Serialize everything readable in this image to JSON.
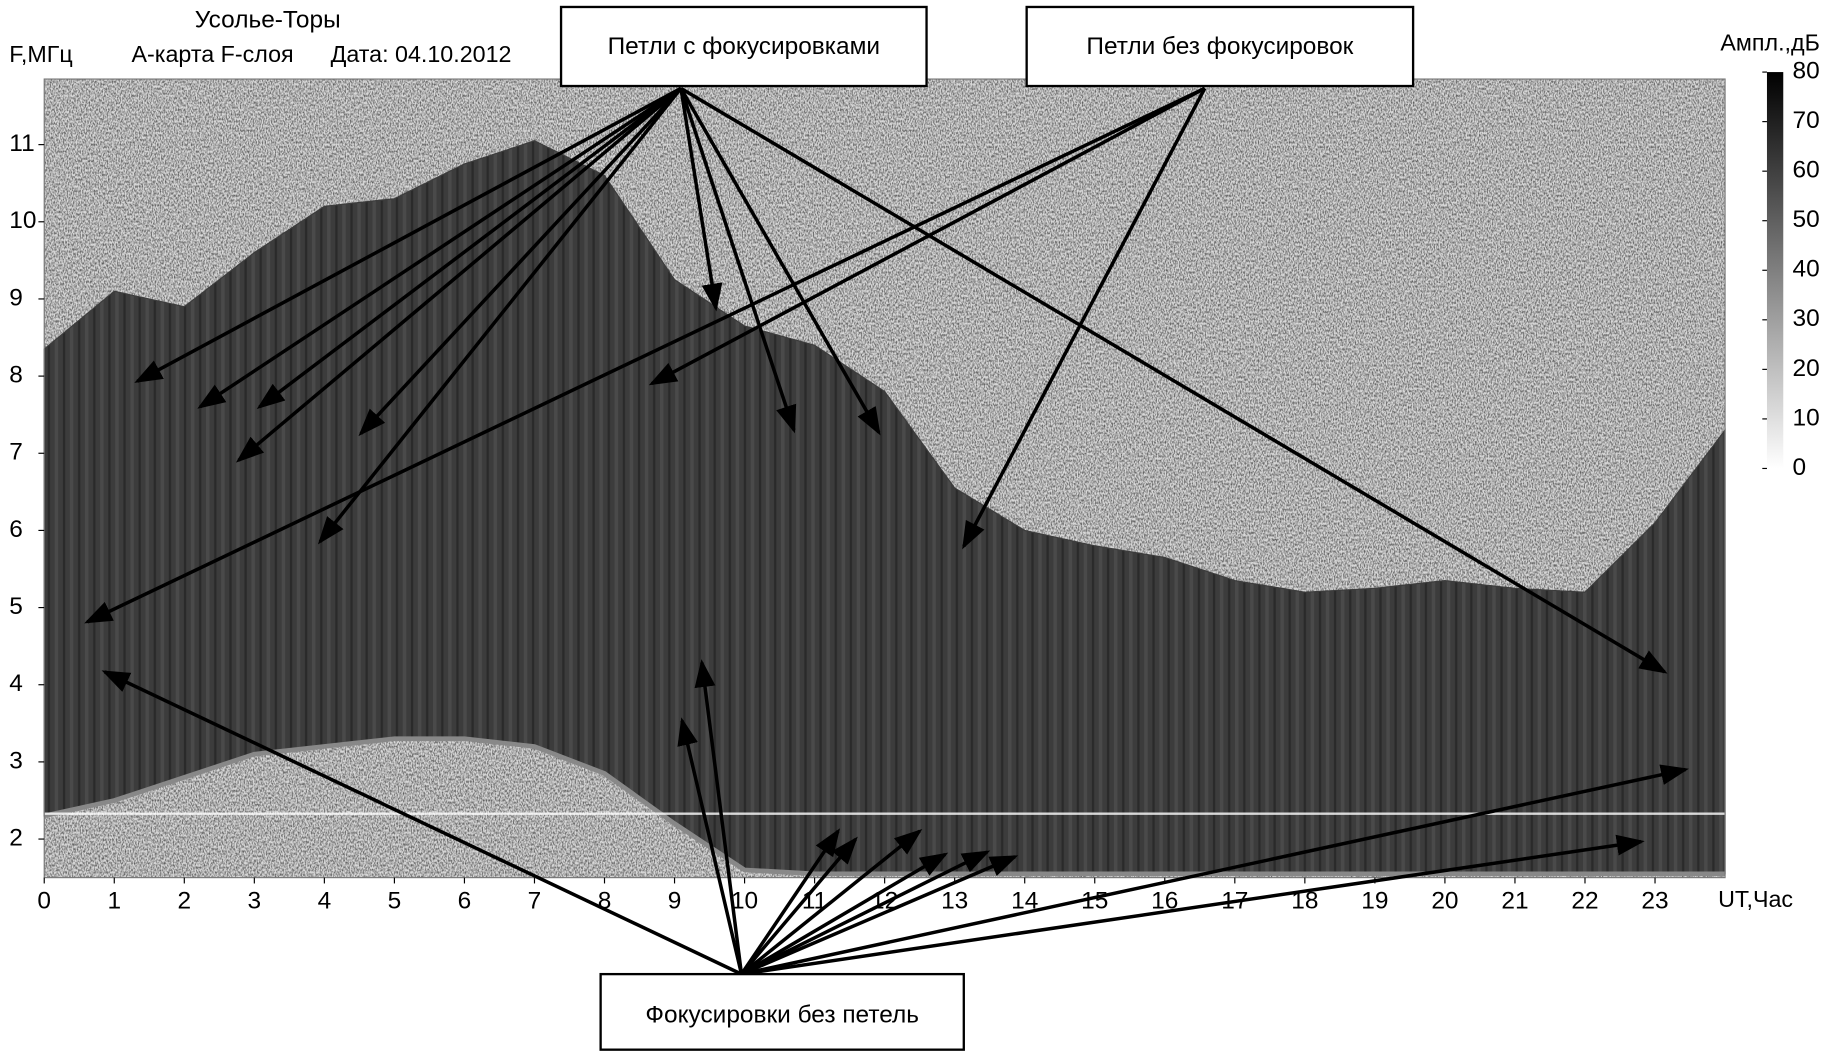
{
  "chart_data": {
    "type": "area",
    "title": "Усолье-Торы",
    "subtitle": "А-карта F-слоя",
    "date_label": "Дата: 04.10.2012",
    "xlabel": "UT,Час",
    "ylabel": "F,МГц",
    "x": [
      0,
      1,
      2,
      3,
      4,
      5,
      6,
      7,
      8,
      9,
      10,
      11,
      12,
      13,
      14,
      15,
      16,
      17,
      18,
      19,
      20,
      21,
      22,
      23,
      24
    ],
    "values": [
      8.35,
      9.1,
      8.9,
      9.6,
      10.2,
      10.3,
      10.75,
      11.05,
      10.6,
      9.25,
      8.65,
      8.4,
      7.8,
      6.55,
      6.0,
      5.8,
      5.65,
      5.35,
      5.2,
      5.25,
      5.35,
      5.25,
      5.2,
      6.1,
      7.3
    ],
    "lower": [
      2.3,
      2.5,
      2.8,
      3.1,
      3.2,
      3.3,
      3.3,
      3.2,
      2.85,
      2.2,
      1.6,
      1.55,
      1.55,
      1.55,
      1.55,
      1.55,
      1.55,
      1.55,
      1.55,
      1.55,
      1.55,
      1.55,
      1.55,
      1.55,
      1.55
    ],
    "color": "#3c3c3c",
    "xlim": [
      0,
      24
    ],
    "xticks": [
      0,
      1,
      2,
      3,
      4,
      5,
      6,
      7,
      8,
      9,
      10,
      11,
      12,
      13,
      14,
      15,
      16,
      17,
      18,
      19,
      20,
      21,
      22,
      23
    ],
    "ylim": [
      1.5,
      11.85
    ],
    "yticks": [
      2,
      3,
      4,
      5,
      6,
      7,
      8,
      9,
      10,
      11
    ],
    "colorbar_label": "Ампл.,дБ",
    "clim": [
      0,
      80
    ],
    "cticks": [
      0,
      10,
      20,
      30,
      40,
      50,
      60,
      70,
      80
    ],
    "annotations": [
      "Петли с фокусировками",
      "Петли без фокусировок",
      "Фокусировки без петель"
    ]
  }
}
